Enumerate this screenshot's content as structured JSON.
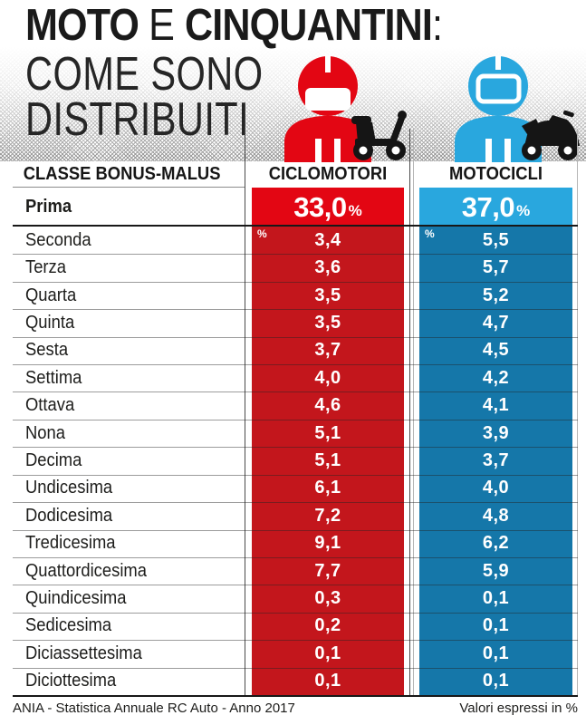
{
  "title": {
    "bold1": "MOTO",
    "light_connector": "E",
    "bold2": "CINQUANTINI",
    "colon": ":",
    "line2": "COME SONO",
    "line3": "DISTRIBUITI"
  },
  "table": {
    "header": {
      "col1": "CLASSE BONUS-MALUS",
      "col2": "CICLOMOTORI",
      "col3": "MOTOCICLI"
    },
    "unit_mark": "%",
    "prima": {
      "label": "Prima",
      "ciclomotori": "33,0",
      "motocicli": "37,0"
    },
    "rows": [
      {
        "label": "Seconda",
        "ciclomotori": "3,4",
        "motocicli": "5,5"
      },
      {
        "label": "Terza",
        "ciclomotori": "3,6",
        "motocicli": "5,7"
      },
      {
        "label": "Quarta",
        "ciclomotori": "3,5",
        "motocicli": "5,2"
      },
      {
        "label": "Quinta",
        "ciclomotori": "3,5",
        "motocicli": "4,7"
      },
      {
        "label": "Sesta",
        "ciclomotori": "3,7",
        "motocicli": "4,5"
      },
      {
        "label": "Settima",
        "ciclomotori": "4,0",
        "motocicli": "4,2"
      },
      {
        "label": "Ottava",
        "ciclomotori": "4,6",
        "motocicli": "4,1"
      },
      {
        "label": "Nona",
        "ciclomotori": "5,1",
        "motocicli": "3,9"
      },
      {
        "label": "Decima",
        "ciclomotori": "5,1",
        "motocicli": "3,7"
      },
      {
        "label": "Undicesima",
        "ciclomotori": "6,1",
        "motocicli": "4,0"
      },
      {
        "label": "Dodicesima",
        "ciclomotori": "7,2",
        "motocicli": "4,8"
      },
      {
        "label": "Tredicesima",
        "ciclomotori": "9,1",
        "motocicli": "6,2"
      },
      {
        "label": "Quattordicesima",
        "ciclomotori": "7,7",
        "motocicli": "5,9"
      },
      {
        "label": "Quindicesima",
        "ciclomotori": "0,3",
        "motocicli": "0,1"
      },
      {
        "label": "Sedicesima",
        "ciclomotori": "0,2",
        "motocicli": "0,1"
      },
      {
        "label": "Diciassettesima",
        "ciclomotori": "0,1",
        "motocicli": "0,1"
      },
      {
        "label": "Diciottesima",
        "ciclomotori": "0,1",
        "motocicli": "0,1"
      }
    ]
  },
  "footer": {
    "source": "ANIA - Statistica Annuale RC Auto - Anno 2017",
    "note": "Valori espressi in %"
  },
  "colors": {
    "red_primary": "#e30613",
    "red_row": "#c3161c",
    "blue_primary": "#29a7de",
    "blue_row": "#1577a9",
    "ink": "#1a1a1a"
  },
  "chart_data": {
    "type": "table",
    "title": "MOTO E CINQUANTINI: COME SONO DISTRIBUITI",
    "columns": [
      "CLASSE BONUS-MALUS",
      "CICLOMOTORI",
      "MOTOCICLI"
    ],
    "unit": "%",
    "categories": [
      "Prima",
      "Seconda",
      "Terza",
      "Quarta",
      "Quinta",
      "Sesta",
      "Settima",
      "Ottava",
      "Nona",
      "Decima",
      "Undicesima",
      "Dodicesima",
      "Tredicesima",
      "Quattordicesima",
      "Quindicesima",
      "Sedicesima",
      "Diciassettesima",
      "Diciottesima"
    ],
    "series": [
      {
        "name": "CICLOMOTORI",
        "values": [
          33.0,
          3.4,
          3.6,
          3.5,
          3.5,
          3.7,
          4.0,
          4.6,
          5.1,
          5.1,
          6.1,
          7.2,
          9.1,
          7.7,
          0.3,
          0.2,
          0.1,
          0.1
        ]
      },
      {
        "name": "MOTOCICLI",
        "values": [
          37.0,
          5.5,
          5.7,
          5.2,
          4.7,
          4.5,
          4.2,
          4.1,
          3.9,
          3.7,
          4.0,
          4.8,
          6.2,
          5.9,
          0.1,
          0.1,
          0.1,
          0.1
        ]
      }
    ],
    "source": "ANIA - Statistica Annuale RC Auto - Anno 2017",
    "note": "Valori espressi in %"
  }
}
